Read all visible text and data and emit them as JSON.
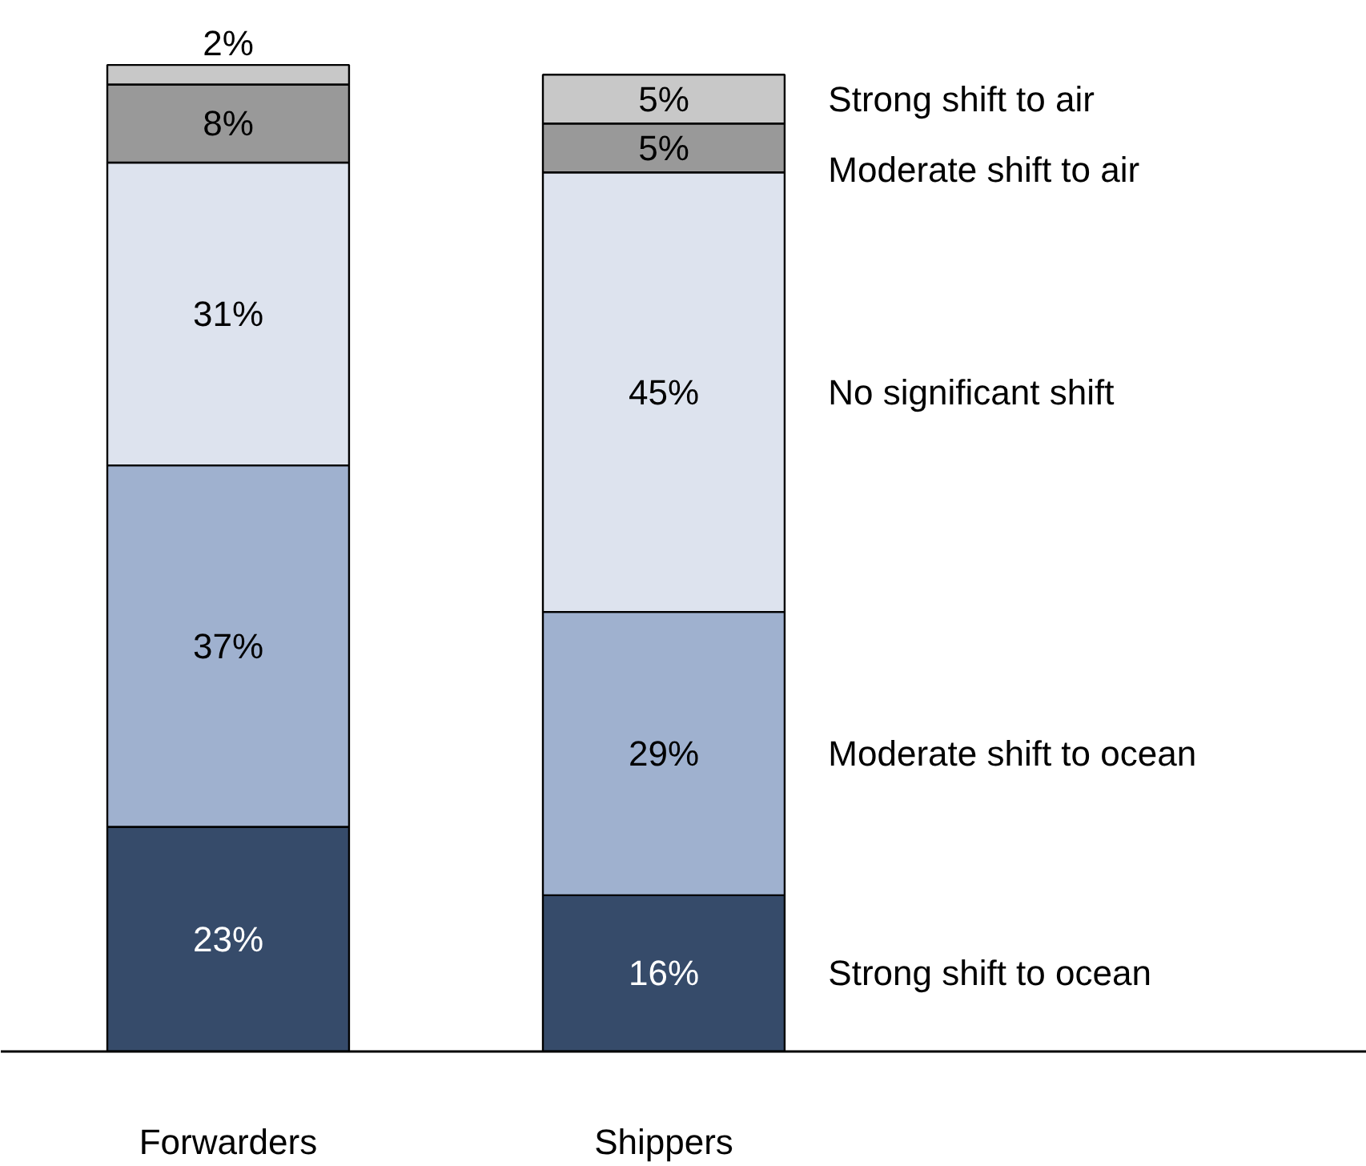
{
  "chart_data": {
    "type": "bar",
    "stacked": true,
    "grid": false,
    "categories": [
      "Forwarders",
      "Shippers"
    ],
    "series": [
      {
        "name": "Strong shift to ocean",
        "color": "#364b6a",
        "values": [
          23,
          16
        ],
        "value_labels": [
          "23%",
          "16%"
        ]
      },
      {
        "name": "Moderate shift to ocean",
        "color": "#9fb1cf",
        "values": [
          37,
          29
        ],
        "value_labels": [
          "37%",
          "29%"
        ]
      },
      {
        "name": "No significant shift",
        "color": "#dde3ee",
        "values": [
          31,
          45
        ],
        "value_labels": [
          "31%",
          "45%"
        ]
      },
      {
        "name": "Moderate shift to air",
        "color": "#999999",
        "values": [
          8,
          5
        ],
        "value_labels": [
          "8%",
          "5%"
        ]
      },
      {
        "name": "Strong shift to air",
        "color": "#c8c8c8",
        "values": [
          2,
          5
        ],
        "value_labels": [
          "2%",
          "5%"
        ]
      }
    ]
  }
}
